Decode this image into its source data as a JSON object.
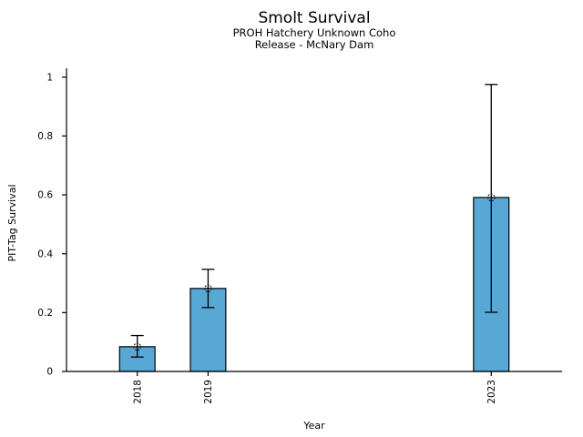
{
  "chart_data": {
    "type": "bar",
    "title": "Smolt Survival",
    "subtitle_lines": [
      "PROH Hatchery Unknown Coho",
      "Release - McNary Dam"
    ],
    "xlabel": "Year",
    "ylabel": "PIT-Tag Survival",
    "x": [
      2018,
      2019,
      2023
    ],
    "xtick_labels": [
      "2018",
      "2019",
      "2023"
    ],
    "values": [
      0.084,
      0.282,
      0.591
    ],
    "error_low": [
      0.049,
      0.217,
      0.201
    ],
    "error_high": [
      0.122,
      0.347,
      0.975
    ],
    "yticks": [
      0,
      0.2,
      0.4,
      0.6,
      0.8,
      1
    ],
    "ytick_labels": [
      "0",
      "0.2",
      "0.4",
      "0.6",
      "0.8",
      "1"
    ],
    "xlim": [
      2017,
      2024
    ],
    "ylim": [
      0,
      1.03
    ],
    "bar_width": 0.5,
    "bar_fill_color": "#57A8D5",
    "bar_edge_color": "#000000",
    "errorbar_color": "#000000",
    "marker_style": "open-circle-dashed",
    "marker_color": "#1a1a1a",
    "grid": false,
    "legend": null,
    "background_color": "#ffffff"
  }
}
